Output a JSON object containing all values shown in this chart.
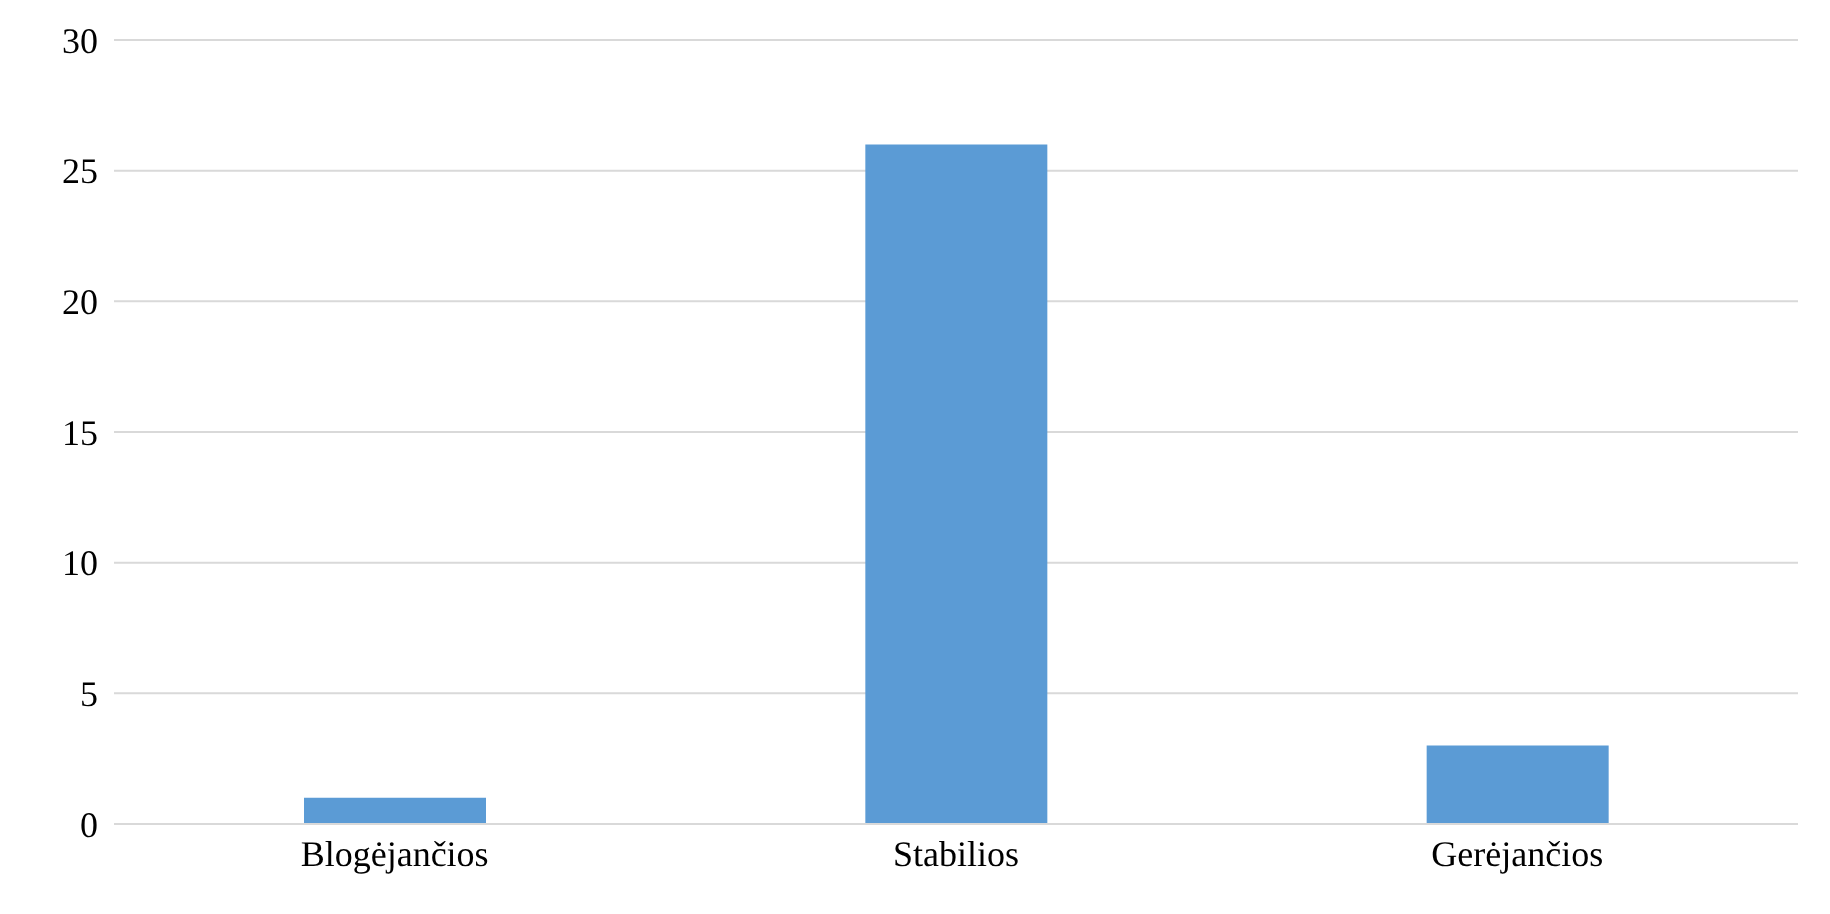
{
  "chart_data": {
    "type": "bar",
    "categories": [
      "Blogėjančios",
      "Stabilios",
      "Gerėjančios"
    ],
    "values": [
      1,
      26,
      3
    ],
    "color": "#5b9bd5",
    "ylim": [
      0,
      30
    ],
    "yticks": [
      0,
      5,
      10,
      15,
      20,
      25,
      30
    ],
    "grid": "y"
  }
}
